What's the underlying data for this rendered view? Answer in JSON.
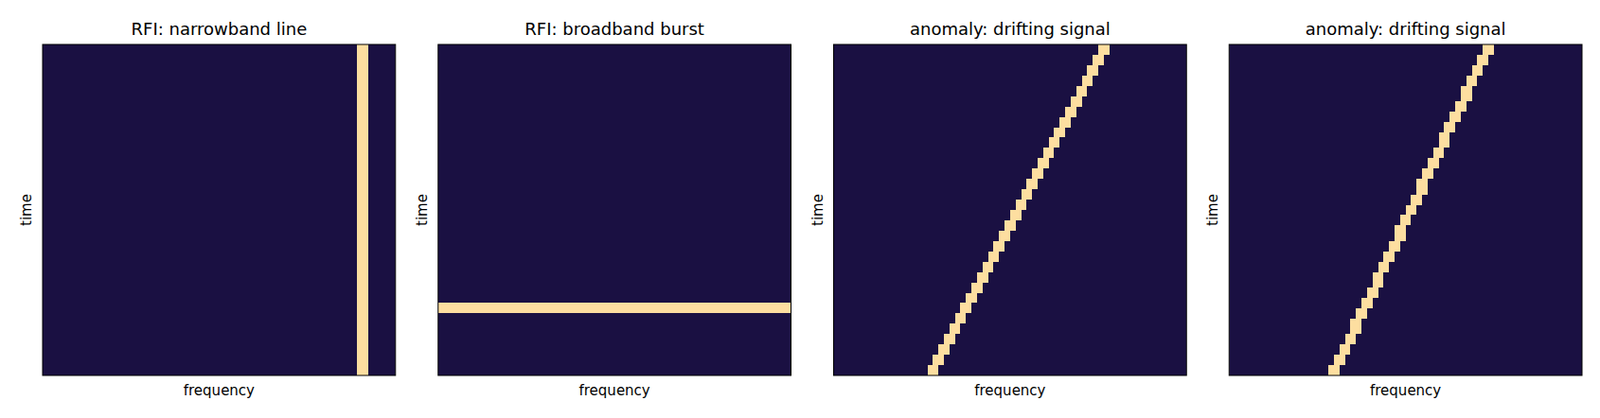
{
  "chart_data": [
    {
      "type": "heatmap",
      "title": "RFI: narrowband line",
      "x_label": "frequency",
      "y_label": "time",
      "tick_labels": false,
      "n_time": 64,
      "n_freq": 64,
      "clim": [
        0,
        1
      ],
      "background": 0.12,
      "signal_level": 0.93,
      "line_freq": [
        57,
        58
      ]
    },
    {
      "type": "heatmap",
      "title": "RFI: broadband burst",
      "x_label": "frequency",
      "y_label": "time",
      "tick_labels": false,
      "n_time": 64,
      "n_freq": 64,
      "clim": [
        0,
        1
      ],
      "background": 0.12,
      "signal_level": 0.93,
      "burst_time": [
        50,
        51
      ]
    },
    {
      "type": "heatmap",
      "title": "anomaly: drifting signal",
      "x_label": "frequency",
      "y_label": "time",
      "tick_labels": false,
      "n_time": 64,
      "n_freq": 64,
      "clim": [
        0,
        1
      ],
      "background": 0.12,
      "signal_level": 0.93,
      "track_width": 2,
      "track_freq": [
        48,
        48,
        47,
        47,
        46,
        46,
        45,
        45,
        44,
        44,
        43,
        43,
        42,
        42,
        41,
        41,
        40,
        40,
        39,
        39,
        38,
        38,
        37,
        37,
        36,
        36,
        35,
        35,
        34,
        34,
        33,
        33,
        32,
        32,
        31,
        31,
        30,
        30,
        29,
        29,
        28,
        28,
        27,
        27,
        26,
        26,
        25,
        25,
        24,
        24,
        23,
        23,
        22,
        22,
        21,
        21,
        20,
        20,
        19,
        19,
        18,
        18,
        17,
        17
      ]
    },
    {
      "type": "heatmap",
      "title": "anomaly: drifting signal",
      "x_label": "frequency",
      "y_label": "time",
      "tick_labels": false,
      "n_time": 64,
      "n_freq": 64,
      "clim": [
        0,
        1
      ],
      "background": 0.12,
      "signal_level": 0.93,
      "track_width": 2,
      "track_freq": [
        46,
        46,
        45,
        45,
        44,
        44,
        43,
        43,
        42,
        42,
        42,
        41,
        41,
        40,
        40,
        39,
        39,
        38,
        38,
        38,
        37,
        37,
        36,
        36,
        35,
        35,
        34,
        34,
        34,
        33,
        33,
        32,
        32,
        31,
        31,
        30,
        30,
        30,
        29,
        29,
        28,
        28,
        27,
        27,
        26,
        26,
        26,
        25,
        25,
        24,
        24,
        23,
        23,
        22,
        22,
        22,
        21,
        21,
        20,
        20,
        19,
        19,
        18,
        18
      ]
    }
  ]
}
